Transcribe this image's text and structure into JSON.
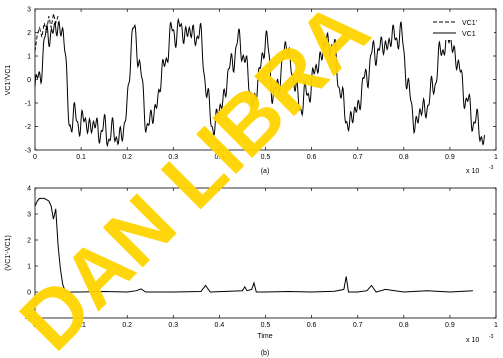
{
  "watermark": "DAN LIBRA",
  "chart_data": [
    {
      "type": "line",
      "caption": "(a)",
      "ylabel": "VC1'/VC1",
      "xlabel": "",
      "x_exponent": "x 10",
      "x_exponent_power": "-3",
      "xlim": [
        0,
        1
      ],
      "ylim": [
        -3,
        3
      ],
      "xticks": [
        "0",
        "0.1",
        "0.2",
        "0.3",
        "0.4",
        "0.5",
        "0.6",
        "0.7",
        "0.8",
        "0.9",
        "1"
      ],
      "yticks": [
        "-3",
        "-2",
        "-1",
        "0",
        "1",
        "2",
        "3"
      ],
      "legend_position": "top-right",
      "series": [
        {
          "name": "VC1'",
          "style": "dashed",
          "x": [
            0.0,
            0.005,
            0.01,
            0.015,
            0.02,
            0.025,
            0.03,
            0.035,
            0.04,
            0.045,
            0.05
          ],
          "y": [
            1.2,
            1.9,
            2.2,
            1.8,
            2.4,
            2.0,
            2.7,
            2.2,
            2.8,
            2.4,
            2.7
          ]
        },
        {
          "name": "VC1",
          "style": "solid",
          "levels": [
            {
              "x": 0.0,
              "y": -0.4
            },
            {
              "x": 0.03,
              "y": 2.0
            },
            {
              "x": 0.06,
              "y": 2.2
            },
            {
              "x": 0.075,
              "y": -1.7
            },
            {
              "x": 0.19,
              "y": -2.4
            },
            {
              "x": 0.215,
              "y": 2.0
            },
            {
              "x": 0.245,
              "y": -1.9
            },
            {
              "x": 0.305,
              "y": 2.1
            },
            {
              "x": 0.355,
              "y": 1.9
            },
            {
              "x": 0.385,
              "y": -1.9
            },
            {
              "x": 0.445,
              "y": 1.5
            },
            {
              "x": 0.475,
              "y": -0.9
            },
            {
              "x": 0.5,
              "y": 1.6
            },
            {
              "x": 0.52,
              "y": -0.7
            },
            {
              "x": 0.545,
              "y": 1.3
            },
            {
              "x": 0.575,
              "y": -1.0
            },
            {
              "x": 0.64,
              "y": 1.6
            },
            {
              "x": 0.68,
              "y": -1.8
            },
            {
              "x": 0.745,
              "y": 1.3
            },
            {
              "x": 0.79,
              "y": 1.9
            },
            {
              "x": 0.825,
              "y": -1.8
            },
            {
              "x": 0.845,
              "y": -1.2
            },
            {
              "x": 0.895,
              "y": 1.7
            },
            {
              "x": 0.955,
              "y": -1.7
            },
            {
              "x": 0.97,
              "y": -2.5
            }
          ]
        }
      ]
    },
    {
      "type": "line",
      "caption": "(b)",
      "ylabel": "(VC1'-VC1)",
      "xlabel": "Time",
      "x_exponent": "x 10",
      "x_exponent_power": "-3",
      "xlim": [
        0,
        1
      ],
      "ylim": [
        -1,
        4
      ],
      "xticks": [
        "0",
        "0.1",
        "0.2",
        "0.3",
        "0.4",
        "0.5",
        "0.6",
        "0.7",
        "0.8",
        "0.9",
        "1"
      ],
      "yticks": [
        "-1",
        "0",
        "1",
        "2",
        "3",
        "4"
      ],
      "series": [
        {
          "name": "",
          "x": [
            0.0,
            0.005,
            0.01,
            0.02,
            0.03,
            0.035,
            0.04,
            0.045,
            0.05,
            0.055,
            0.06,
            0.065,
            0.07,
            0.08,
            0.1,
            0.15,
            0.2,
            0.22,
            0.23,
            0.24,
            0.3,
            0.36,
            0.37,
            0.38,
            0.45,
            0.455,
            0.46,
            0.47,
            0.475,
            0.48,
            0.5,
            0.55,
            0.6,
            0.65,
            0.67,
            0.675,
            0.68,
            0.7,
            0.72,
            0.73,
            0.74,
            0.76,
            0.8,
            0.85,
            0.9,
            0.95
          ],
          "y": [
            3.3,
            3.5,
            3.6,
            3.6,
            3.5,
            3.3,
            2.8,
            3.2,
            1.8,
            0.9,
            0.3,
            0.05,
            -0.02,
            0.0,
            0.0,
            0.02,
            0.0,
            0.05,
            0.12,
            0.0,
            0.0,
            0.02,
            0.25,
            0.0,
            0.05,
            0.2,
            0.05,
            0.1,
            0.35,
            0.0,
            0.0,
            0.02,
            0.0,
            0.03,
            0.1,
            0.6,
            0.0,
            0.0,
            0.05,
            0.25,
            0.0,
            0.1,
            0.0,
            0.05,
            0.0,
            0.05
          ]
        }
      ]
    }
  ]
}
